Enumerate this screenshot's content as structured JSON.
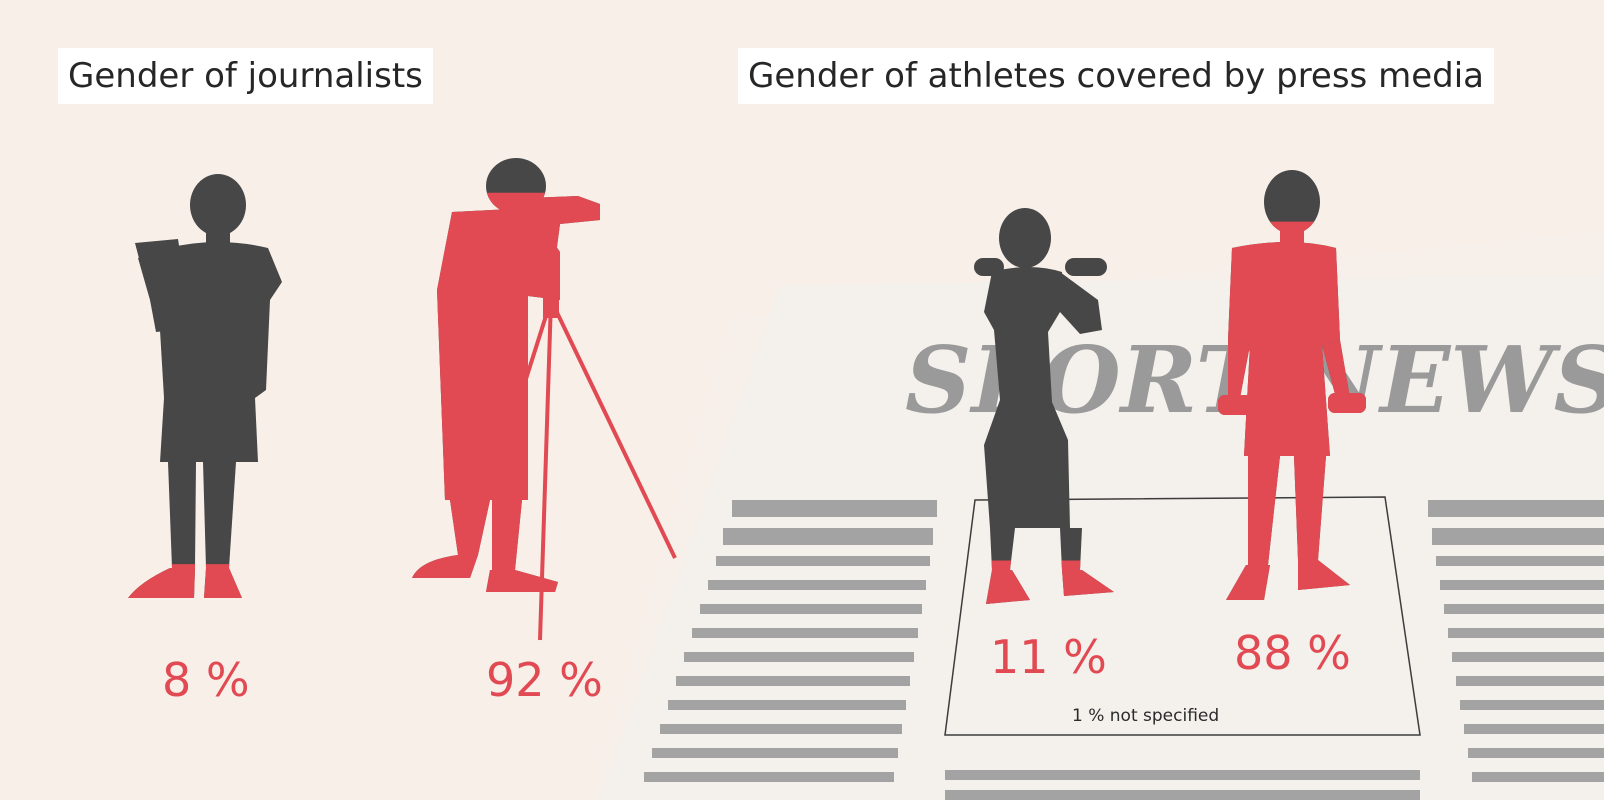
{
  "panels": {
    "journalists": {
      "title": "Gender of journalists"
    },
    "athletes": {
      "title": "Gender of athletes covered by press media",
      "newspaper_masthead": "SPORT NEWS"
    }
  },
  "chart_data": [
    {
      "type": "pictogram",
      "title": "Gender of journalists",
      "categories": [
        "Female",
        "Male"
      ],
      "values": [
        8,
        92
      ],
      "labels": [
        "8 %",
        "92 %"
      ]
    },
    {
      "type": "pictogram",
      "title": "Gender of athletes covered by press media",
      "categories": [
        "Female",
        "Male",
        "Not specified"
      ],
      "values": [
        11,
        88,
        1
      ],
      "labels": [
        "11 %",
        "88 %"
      ],
      "annotation": "1 % not specified"
    }
  ],
  "colors": {
    "background": "#f7efe9",
    "background_light": "#faf4ef",
    "newspaper": "#f5f2ef",
    "dark_figure": "#474747",
    "accent_red": "#e14a52",
    "text_lines": "#a0a0a0",
    "masthead": "#9a9a9a"
  },
  "icons": [
    "woman-tablet-icon",
    "man-camera-tripod-icon",
    "woman-dumbbells-icon",
    "man-dumbbells-icon",
    "newspaper-icon"
  ]
}
